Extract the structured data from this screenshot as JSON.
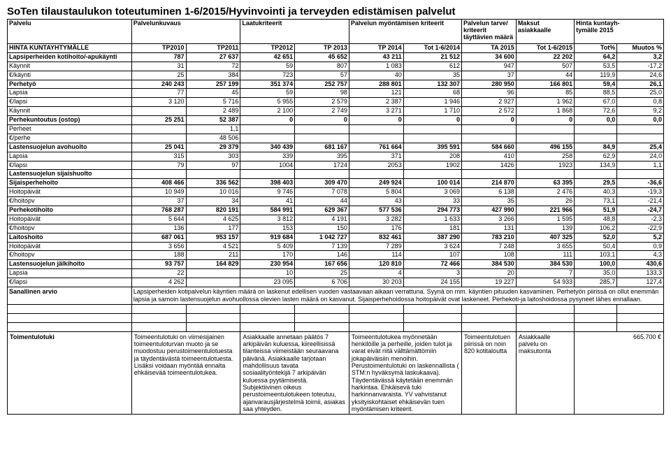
{
  "title": "SoTen tilaustaulukon toteutuminen 1-6/2015/Hyvinvointi ja terveyden edistämisen palvelut",
  "headers": {
    "c1": "Palvelu",
    "c2": "Palvelunkuvaus",
    "c3": "Laatukriteerit",
    "c4": "Palvelun myöntämisen kriteerit",
    "c5a": "Palvelun tarve/",
    "c5b": "kriteerit",
    "c5c": "täyttävien määrä",
    "c6a": "Maksut",
    "c6b": "asiakkaalle",
    "c7a": "Hinta kuntayh-",
    "c7b": "tymälle 2015"
  },
  "subhead": {
    "label": "HINTA KUNTAYHTYMÄLLE",
    "cols": [
      "TP2010",
      "TP2011",
      "TP2012",
      "TP 2013",
      "TP 2014",
      "Tot 1-6/2014",
      "TA 2015",
      "Tot 1-6/2015",
      "Tot%",
      "Muutos %"
    ]
  },
  "rows": [
    {
      "label": "Lapsiperheiden kotihoito/-apukäynti",
      "bold": true,
      "vals": [
        "787",
        "27 637",
        "42 651",
        "45 652",
        "43 211",
        "21 512",
        "34 600",
        "22 202",
        "64,2",
        "3,2"
      ]
    },
    {
      "label": "Käynnit",
      "vals": [
        "31",
        "72",
        "59",
        "807",
        "1 083",
        "612",
        "947",
        "507",
        "53,5",
        "-17,2"
      ]
    },
    {
      "label": "€/käynti",
      "vals": [
        "25",
        "384",
        "723",
        "57",
        "40",
        "35",
        "37",
        "44",
        "119,9",
        "24,6"
      ]
    },
    {
      "label": "Perhetyö",
      "bold": true,
      "vals": [
        "240 243",
        "257 199",
        "351 374",
        "252 757",
        "288 801",
        "132 307",
        "280 950",
        "166 801",
        "59,4",
        "26,1"
      ]
    },
    {
      "label": "Lapsia",
      "vals": [
        "77",
        "45",
        "59",
        "98",
        "121",
        "68",
        "96",
        "85",
        "88,5",
        "25,0"
      ]
    },
    {
      "label": "€/lapsi",
      "vals": [
        "3 120",
        "5 716",
        "5 955",
        "2 579",
        "2 387",
        "1 946",
        "2 927",
        "1 962",
        "67,0",
        "0,8"
      ]
    },
    {
      "label": "Käynnit",
      "vals": [
        "",
        "2 489",
        "2 100",
        "2 749",
        "3 271",
        "1 710",
        "2 572",
        "1 868",
        "72,6",
        "9,2"
      ]
    },
    {
      "label": "Perhekuntoutus (ostop)",
      "bold": true,
      "vals": [
        "25 251",
        "52 387",
        "0",
        "0",
        "0",
        "0",
        "0",
        "0",
        "0,0",
        "0,0"
      ]
    },
    {
      "label": "Perheet",
      "vals": [
        "",
        "1,1",
        "",
        "",
        "",
        "",
        "",
        "",
        "",
        ""
      ]
    },
    {
      "label": "€/perhe",
      "vals": [
        "",
        "48 506",
        "",
        "",
        "",
        "",
        "",
        "",
        "",
        ""
      ]
    },
    {
      "label": "Lastensuojelun avohuolto",
      "bold": true,
      "vals": [
        "25 041",
        "29 379",
        "340 439",
        "681 167",
        "761 664",
        "395 591",
        "584 660",
        "496 155",
        "84,9",
        "25,4"
      ]
    },
    {
      "label": "Lapsia",
      "vals": [
        "315",
        "303",
        "339",
        "395",
        "371",
        "208",
        "410",
        "258",
        "62,9",
        "24,0"
      ]
    },
    {
      "label": "€/lapsi",
      "vals": [
        "79",
        "97",
        "1004",
        "1724",
        "2053",
        "1902",
        "1426",
        "1923",
        "134,9",
        "1,1"
      ]
    },
    {
      "label": "Lastensuojelun sijaishuolto",
      "bold": true,
      "vals": [
        "",
        "",
        "",
        "",
        "",
        "",
        "",
        "",
        "",
        ""
      ]
    },
    {
      "label": "Sijaisperhehoito",
      "bold": true,
      "vals": [
        "408 466",
        "336 562",
        "398 403",
        "309 470",
        "249 924",
        "100 014",
        "214 870",
        "63 395",
        "29,5",
        "-36,6"
      ]
    },
    {
      "label": "Hoitopäivät",
      "vals": [
        "10 949",
        "10 016",
        "9 746",
        "7 078",
        "5 804",
        "3 069",
        "6 138",
        "2 476",
        "40,3",
        "-19,3"
      ]
    },
    {
      "label": "€/hoitopv",
      "vals": [
        "37",
        "34",
        "41",
        "44",
        "43",
        "33",
        "35",
        "26",
        "73,1",
        "-21,4"
      ]
    },
    {
      "label": "Perhekotihoito",
      "bold": true,
      "vals": [
        "768 287",
        "820 191",
        "584 991",
        "629 367",
        "577 536",
        "294 773",
        "427 990",
        "221 966",
        "51,9",
        "-24,7"
      ]
    },
    {
      "label": "Hoitopäivät",
      "vals": [
        "5 644",
        "4 625",
        "3 812",
        "4 191",
        "3 282",
        "1 633",
        "3 266",
        "1 595",
        "48,8",
        "-2,3"
      ]
    },
    {
      "label": "€/hoitopv",
      "vals": [
        "136",
        "177",
        "153",
        "150",
        "176",
        "181",
        "131",
        "139",
        "106,2",
        "-22,9"
      ]
    },
    {
      "label": "Laitoshoito",
      "bold": true,
      "vals": [
        "687 061",
        "953 157",
        "919 684",
        "1 042 727",
        "832 461",
        "387 290",
        "783 210",
        "407 325",
        "52,0",
        "5,2"
      ]
    },
    {
      "label": "Hoitopäivät",
      "vals": [
        "3 656",
        "4 521",
        "5 409",
        "7 139",
        "7 289",
        "3 624",
        "7 248",
        "3 655",
        "50,4",
        "0,9"
      ]
    },
    {
      "label": "€/hoitopv",
      "vals": [
        "188",
        "211",
        "170",
        "146",
        "114",
        "107",
        "108",
        "111",
        "103,1",
        "4,3"
      ]
    },
    {
      "label": "Lastensuojelun jälkihoito",
      "bold": true,
      "vals": [
        "93 757",
        "164 829",
        "230 954",
        "167 656",
        "120 810",
        "72 466",
        "384 530",
        "384 530",
        "100,0",
        "430,6"
      ]
    },
    {
      "label": "Lapsia",
      "vals": [
        "22",
        "",
        "10",
        "25",
        "4",
        "3",
        "20",
        "7",
        "35,0",
        "133,3"
      ]
    },
    {
      "label": "€/lapsi",
      "vals": [
        "4 262",
        "",
        "23 095",
        "6 706",
        "30 203",
        "24 155",
        "19 227",
        "54 933",
        "285,7",
        "127,4"
      ]
    }
  ],
  "notes": {
    "label": "Sanallinen arvio",
    "text": "Lapsiperheiden kotipalvelun käyntien määrä on laskenut edellisen vuoden vastaavaan aikaan verrattuna. Syynä on mm. käyntien pituuden kasvaminen. Perhetyön piirissä on ollut enemmän lapsia ja samoin lastensuojelun avohuollossa olevien lasten määrä on kasvanut. Sijaisperhehoidossa hoitopäivät ovat laskeneet. Perhekoti-ja laitoshoidossa pysyneet lähes ennallaan."
  },
  "block2": {
    "label": "Toimentulotuki",
    "c2": "Toimeentulotuki on viimesijainen toimeentuloturvan muoto ja se muodostuu perustoimeentulotuesta ja täydentävästä toimeentulotuesta. Lisäksi voidaan myöntää ennalta ehkäisevää toimeentulotukea.",
    "c3": "Asiakkaalle annetaan päätös 7 arkipäivän kuluessa, kiireellisissä tilanteissa viimeistään seuraavana päivänä. Asiakkaalle tarjotaan mahdollisuus tavata sosiaalityöntekijä 7 arkipäivän kuluessa pyytämisestä. Subjektiivinen oikeus perustoimeentulotukeen toteutuu, ajanvarausjärjestelmä toimii, asiakas saa yhteyden.",
    "c4": "Toimeentulotukea myönnetään henkilöille ja perheille, joiden tulot ja varat eivät riitä välttämättömiin jokapäiväisiin menoihin. Perustoimentulotuki on laskennallista ( STM:n hyväksymä laskukaava). Täydentävässä käytetään enemmän harkintaa. Ehkäisevä tuki harkinnanvaraista. YV vahvistanut yksityiskohtaiset ehkäisevän tuen myöntämisen kriteerit.",
    "c5": "Toimeentulotuen piirissä on noin 820 kotitaloutta",
    "c6": "Asiakkaalle palvelu on maksutonta",
    "c7": "665.700 €"
  }
}
